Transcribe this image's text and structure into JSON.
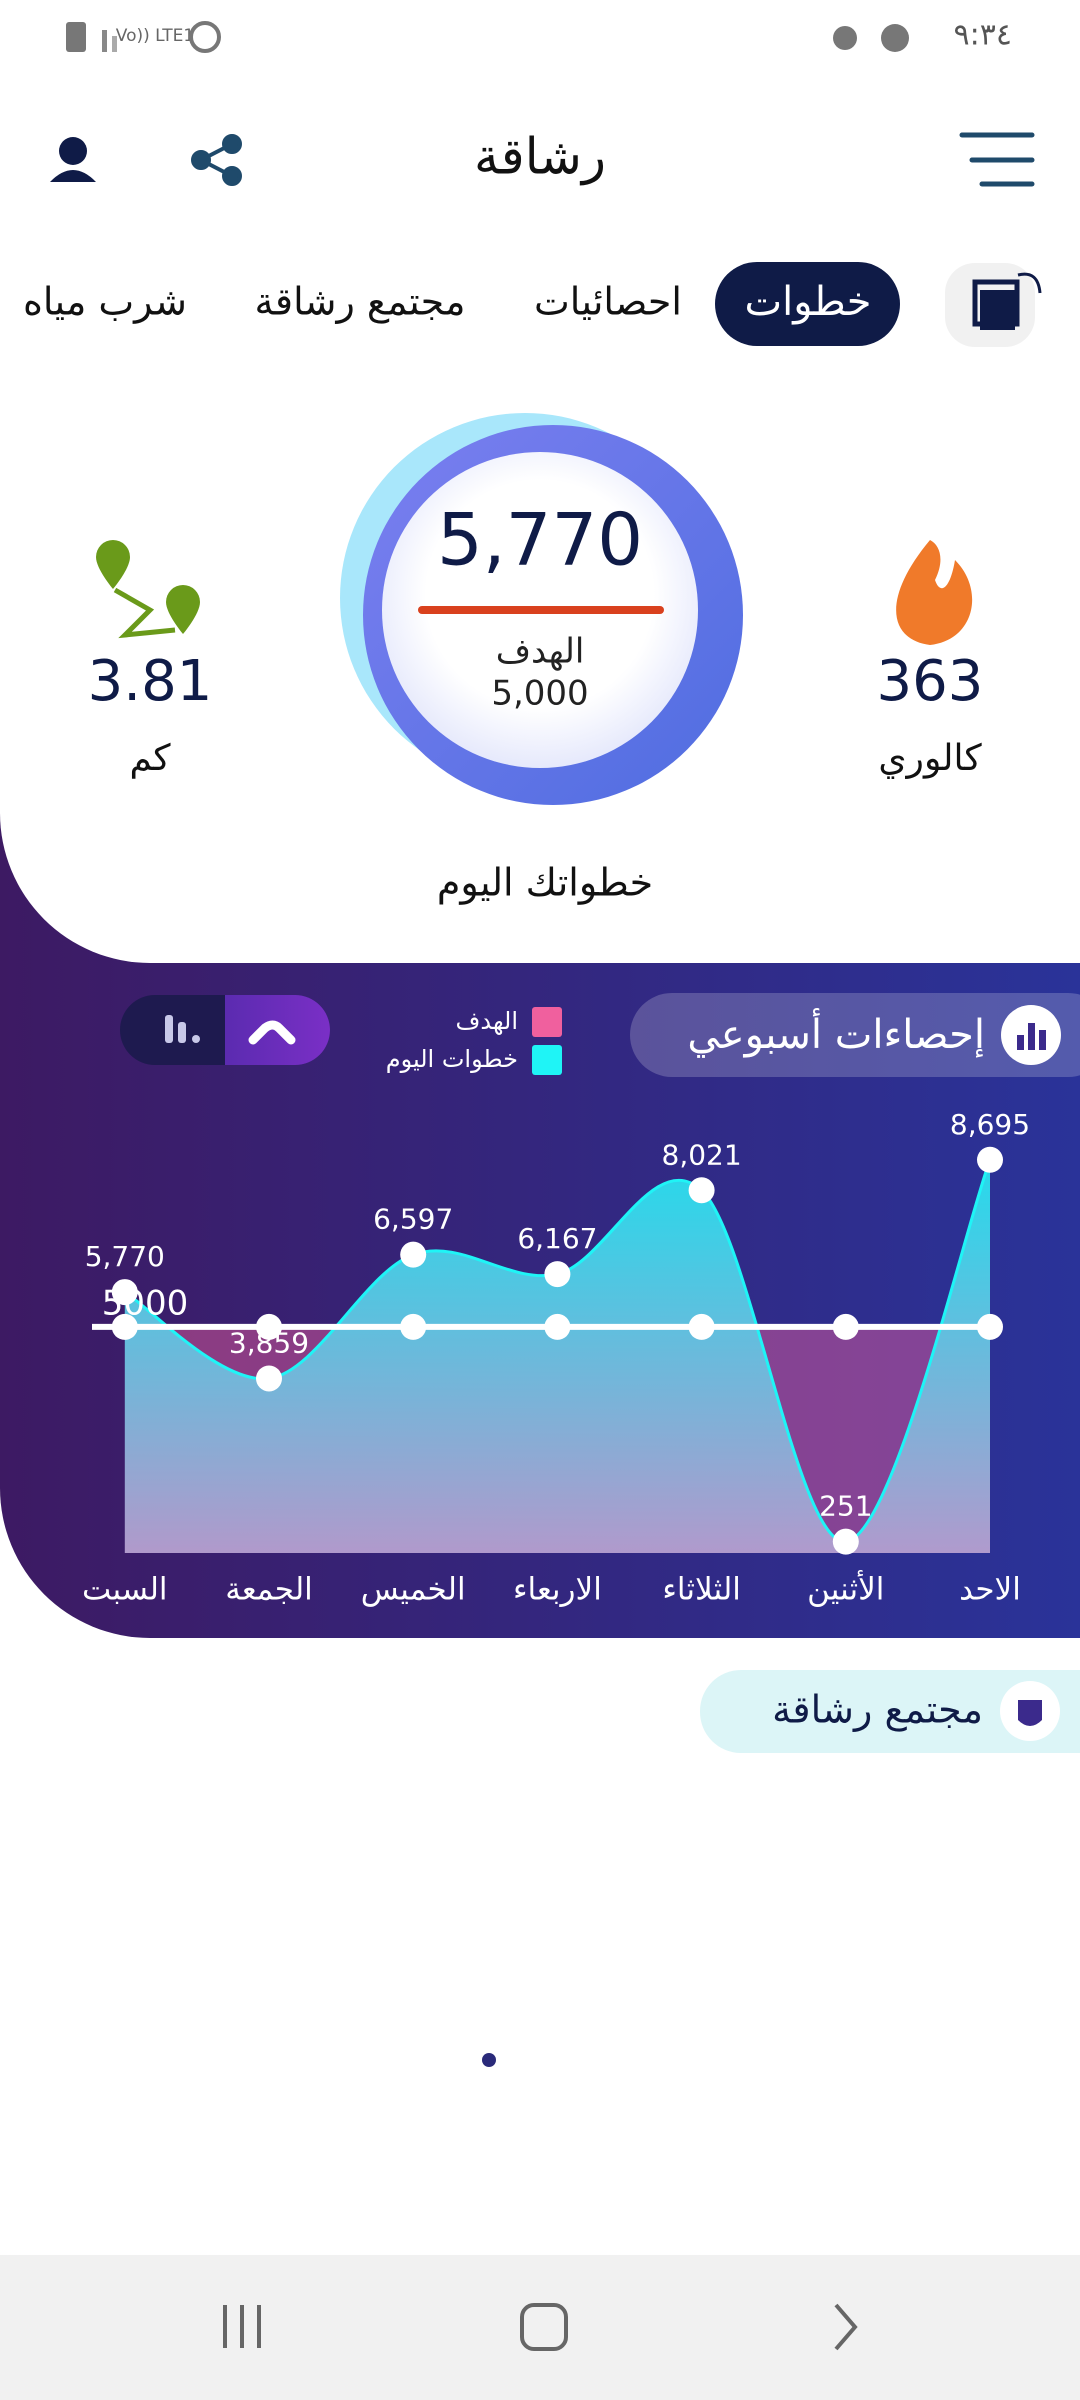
{
  "status_bar": {
    "time": "٩:٣٤",
    "network": "Vo)) LTE1"
  },
  "header": {
    "title": "رشاقة"
  },
  "tabs": [
    "خطوات",
    "احصائيات",
    "مجتمع رشاقة",
    "شرب مياه"
  ],
  "summary": {
    "steps": "5,770",
    "goal_label": "الهدف",
    "goal": "5,000",
    "caption": "خطواتك اليوم",
    "calories": "363",
    "calories_unit": "كالوري",
    "distance": "3.81",
    "distance_unit": "كم"
  },
  "chart_data": {
    "type": "area",
    "title": "إحصاءات أسبوعي",
    "categories": [
      "الاحد",
      "الأثنين",
      "الثلاثاء",
      "الاربعاء",
      "الخميس",
      "الجمعة",
      "السبت"
    ],
    "series": [
      {
        "name": "خطوات اليوم",
        "color": "#1ff4f6",
        "values": [
          8695,
          251,
          8021,
          6167,
          6597,
          3859,
          5770
        ],
        "value_labels": [
          "8,695",
          "251",
          "8,021",
          "6,167",
          "6,597",
          "3,859",
          "5,770"
        ]
      }
    ],
    "goal": {
      "name": "الهدف",
      "color": "#f0609e",
      "value": 5000
    },
    "ylim": [
      0,
      9000
    ]
  },
  "community": {
    "title": "مجتمع رشاقة"
  }
}
